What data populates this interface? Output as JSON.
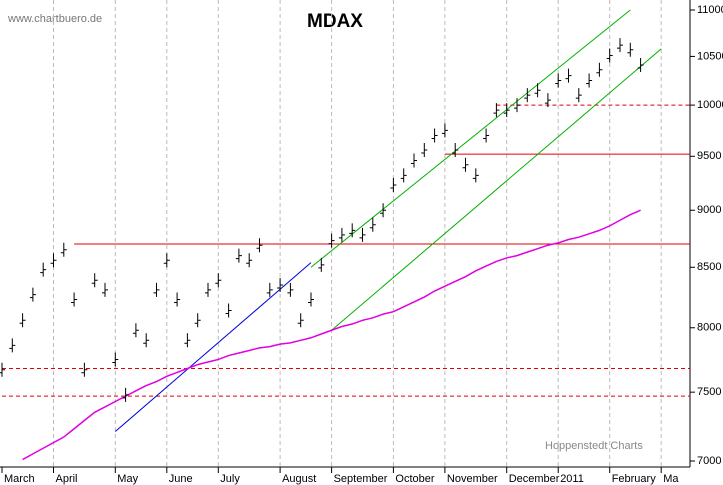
{
  "chart_data": {
    "type": "bar-stock",
    "title": "MDAX",
    "source": "www.chartbuero.de",
    "credit": "Hoppenstedt Charts",
    "categories": [
      "March",
      null,
      null,
      null,
      null,
      "April",
      null,
      null,
      null,
      null,
      null,
      "May",
      null,
      null,
      null,
      null,
      "June",
      null,
      null,
      null,
      null,
      "July",
      null,
      null,
      null,
      null,
      null,
      "August",
      null,
      null,
      null,
      null,
      "September",
      null,
      null,
      null,
      null,
      null,
      "October",
      null,
      null,
      null,
      null,
      "November",
      null,
      null,
      null,
      null,
      null,
      "December",
      null,
      null,
      null,
      null,
      "2011",
      null,
      null,
      null,
      null,
      "February",
      null,
      null,
      null,
      null,
      "Ma"
    ],
    "values": [
      7670,
      7860,
      8060,
      8270,
      8480,
      8560,
      8650,
      8230,
      7670,
      8390,
      8310,
      7750,
      7480,
      7980,
      7900,
      8310,
      8560,
      8230,
      7900,
      8060,
      8310,
      8390,
      8140,
      8600,
      8560,
      8690,
      8310,
      8350,
      8310,
      8060,
      8230,
      8520,
      8730,
      8780,
      8820,
      8780,
      8870,
      9000,
      9230,
      9320,
      9460,
      9560,
      9700,
      9750,
      9560,
      9420,
      9320,
      9700,
      9950,
      9950,
      10000,
      10100,
      10150,
      10050,
      10250,
      10300,
      10100,
      10250,
      10360,
      10510,
      10620,
      10570,
      10410,
      null,
      null
    ],
    "color": "#000000",
    "moving_average": {
      "color": "#e000e0",
      "values": [
        null,
        null,
        7010,
        7050,
        7090,
        7130,
        7170,
        7230,
        7290,
        7350,
        7390,
        7430,
        7470,
        7510,
        7550,
        7580,
        7620,
        7650,
        7680,
        7710,
        7730,
        7750,
        7780,
        7800,
        7820,
        7840,
        7850,
        7870,
        7880,
        7900,
        7920,
        7950,
        7980,
        8010,
        8030,
        8060,
        8080,
        8110,
        8130,
        8170,
        8210,
        8250,
        8300,
        8340,
        8380,
        8420,
        8470,
        8510,
        8550,
        8580,
        8600,
        8630,
        8660,
        8690,
        8710,
        8740,
        8760,
        8790,
        8820,
        8860,
        8910,
        8960,
        9000,
        null,
        null
      ]
    },
    "levels": [
      {
        "value": 8700,
        "color": "#e00000",
        "dashed": false,
        "from": 7
      },
      {
        "value": 9520,
        "color": "#e00000",
        "dashed": false,
        "from": 43
      },
      {
        "value": 10000,
        "color": "#e00000",
        "dashed": true,
        "from": 48
      },
      {
        "value": 7680,
        "color": "#e00000",
        "dashed": true,
        "from": 0
      },
      {
        "value": 7470,
        "color": "#e00000",
        "dashed": true,
        "from": 0
      }
    ],
    "trendlines": [
      {
        "color": "#0000e0",
        "from": 11,
        "to": 30,
        "values": [
          7210,
          8540
        ]
      },
      {
        "color": "#00b000",
        "from": 30,
        "to": 61,
        "values": [
          8500,
          11000
        ]
      },
      {
        "color": "#00b000",
        "from": 32,
        "to": 64,
        "values": [
          7980,
          10580
        ]
      }
    ],
    "log_scale": true,
    "ylim": [
      7000,
      11000
    ],
    "yticks": [
      7000,
      7500,
      8000,
      8500,
      9000,
      9500,
      10000,
      10500,
      11000
    ],
    "grid": true
  }
}
